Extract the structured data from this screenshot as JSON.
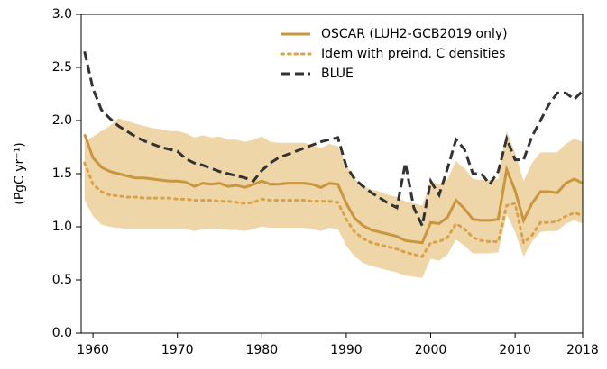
{
  "chart_data": {
    "type": "line",
    "ylabel": "(PgC yr⁻¹)",
    "x": [
      1959,
      1960,
      1961,
      1962,
      1963,
      1964,
      1965,
      1966,
      1967,
      1968,
      1969,
      1970,
      1971,
      1972,
      1973,
      1974,
      1975,
      1976,
      1977,
      1978,
      1979,
      1980,
      1981,
      1982,
      1983,
      1984,
      1985,
      1986,
      1987,
      1988,
      1989,
      1990,
      1991,
      1992,
      1993,
      1994,
      1995,
      1996,
      1997,
      1998,
      1999,
      2000,
      2001,
      2002,
      2003,
      2004,
      2005,
      2006,
      2007,
      2008,
      2009,
      2010,
      2011,
      2012,
      2013,
      2014,
      2015,
      2016,
      2017,
      2018
    ],
    "range": {
      "color": "#eed6a8",
      "upper": [
        1.8,
        1.85,
        1.9,
        1.95,
        2.02,
        2.0,
        1.97,
        1.95,
        1.93,
        1.92,
        1.9,
        1.9,
        1.88,
        1.84,
        1.86,
        1.84,
        1.85,
        1.82,
        1.82,
        1.8,
        1.82,
        1.85,
        1.8,
        1.79,
        1.79,
        1.79,
        1.79,
        1.77,
        1.74,
        1.78,
        1.76,
        1.58,
        1.45,
        1.38,
        1.35,
        1.33,
        1.3,
        1.28,
        1.24,
        1.22,
        1.2,
        1.43,
        1.4,
        1.45,
        1.62,
        1.55,
        1.45,
        1.44,
        1.44,
        1.45,
        1.9,
        1.7,
        1.43,
        1.6,
        1.7,
        1.7,
        1.7,
        1.78,
        1.83,
        1.8
      ],
      "lower": [
        1.25,
        1.1,
        1.02,
        1.0,
        0.99,
        0.98,
        0.98,
        0.98,
        0.98,
        0.98,
        0.98,
        0.98,
        0.98,
        0.96,
        0.98,
        0.98,
        0.98,
        0.97,
        0.97,
        0.96,
        0.98,
        1.0,
        0.99,
        0.99,
        0.99,
        0.99,
        0.99,
        0.98,
        0.96,
        0.99,
        0.98,
        0.82,
        0.72,
        0.66,
        0.63,
        0.61,
        0.59,
        0.57,
        0.54,
        0.53,
        0.52,
        0.7,
        0.68,
        0.74,
        0.88,
        0.82,
        0.75,
        0.75,
        0.75,
        0.76,
        1.12,
        0.95,
        0.72,
        0.86,
        0.95,
        0.96,
        0.96,
        1.03,
        1.06,
        1.03
      ]
    },
    "series": [
      {
        "name": "OSCAR (LUH2-GCB2019 only)",
        "color": "#c9963f",
        "dash": "solid",
        "values": [
          1.87,
          1.65,
          1.56,
          1.52,
          1.5,
          1.48,
          1.46,
          1.46,
          1.45,
          1.44,
          1.43,
          1.43,
          1.42,
          1.38,
          1.41,
          1.4,
          1.41,
          1.38,
          1.39,
          1.37,
          1.4,
          1.43,
          1.4,
          1.4,
          1.41,
          1.41,
          1.41,
          1.4,
          1.37,
          1.41,
          1.4,
          1.22,
          1.08,
          1.01,
          0.97,
          0.95,
          0.93,
          0.91,
          0.87,
          0.86,
          0.85,
          1.04,
          1.03,
          1.09,
          1.25,
          1.17,
          1.07,
          1.06,
          1.06,
          1.07,
          1.54,
          1.34,
          1.06,
          1.22,
          1.33,
          1.33,
          1.32,
          1.41,
          1.45,
          1.41
        ]
      },
      {
        "name": "Idem with preind. C densities",
        "color": "#d9a24a",
        "dash": "dotted",
        "values": [
          1.6,
          1.4,
          1.33,
          1.3,
          1.29,
          1.28,
          1.28,
          1.27,
          1.27,
          1.27,
          1.27,
          1.26,
          1.26,
          1.25,
          1.25,
          1.25,
          1.24,
          1.24,
          1.23,
          1.22,
          1.23,
          1.26,
          1.25,
          1.25,
          1.25,
          1.25,
          1.25,
          1.24,
          1.24,
          1.24,
          1.23,
          1.07,
          0.95,
          0.89,
          0.85,
          0.83,
          0.81,
          0.79,
          0.76,
          0.74,
          0.72,
          0.85,
          0.86,
          0.9,
          1.03,
          0.98,
          0.9,
          0.87,
          0.86,
          0.86,
          1.2,
          1.22,
          0.85,
          0.92,
          1.04,
          1.04,
          1.05,
          1.1,
          1.13,
          1.11
        ]
      },
      {
        "name": "BLUE",
        "color": "#333333",
        "dash": "dashed",
        "values": [
          2.65,
          2.3,
          2.1,
          2.02,
          1.95,
          1.9,
          1.85,
          1.81,
          1.78,
          1.75,
          1.73,
          1.71,
          1.64,
          1.6,
          1.58,
          1.55,
          1.52,
          1.5,
          1.48,
          1.46,
          1.43,
          1.53,
          1.6,
          1.65,
          1.68,
          1.71,
          1.74,
          1.77,
          1.8,
          1.82,
          1.84,
          1.57,
          1.45,
          1.38,
          1.32,
          1.27,
          1.22,
          1.18,
          1.6,
          1.18,
          1.01,
          1.43,
          1.3,
          1.55,
          1.82,
          1.73,
          1.5,
          1.5,
          1.4,
          1.52,
          1.83,
          1.63,
          1.63,
          1.85,
          2.0,
          2.15,
          2.26,
          2.26,
          2.2,
          2.28
        ]
      }
    ],
    "xlim": [
      1958.6,
      2018
    ],
    "xticks": [
      1960,
      1970,
      1980,
      1990,
      2000,
      2010,
      2018
    ],
    "ylim": [
      0,
      3
    ],
    "yticks": [
      {
        "value": 0,
        "label": "0.0"
      },
      {
        "value": 0.5,
        "label": "0.5"
      },
      {
        "value": 1,
        "label": "1.0"
      },
      {
        "value": 1.5,
        "label": "1.5"
      },
      {
        "value": 2,
        "label": "2.0"
      },
      {
        "value": 2.5,
        "label": "2.5"
      },
      {
        "value": 3,
        "label": "3.0"
      }
    ],
    "legend": "upper right",
    "grid": false
  }
}
